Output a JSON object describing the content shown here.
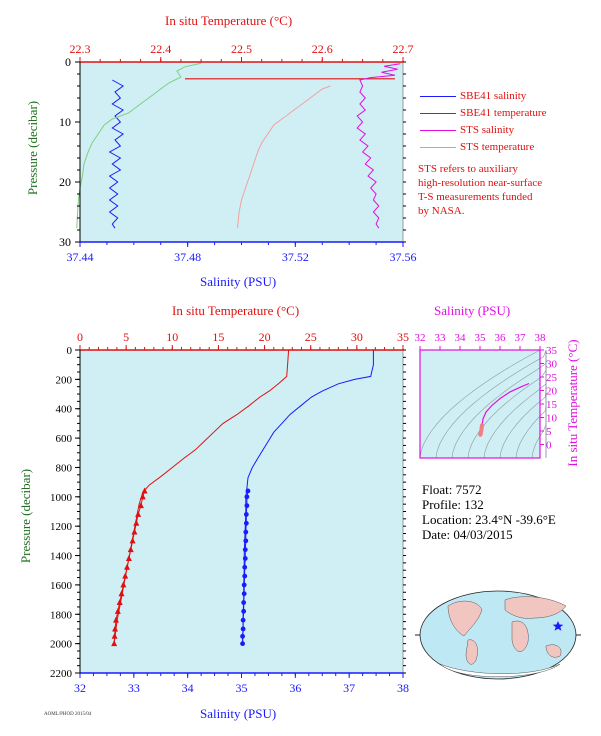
{
  "top_panel": {
    "top_axis_title": "In situ Temperature (°C)",
    "bottom_axis_title": "Salinity (PSU)",
    "left_axis_title": "Pressure (decibar)"
  },
  "legend": {
    "entries": [
      {
        "label": "SBE41 salinity",
        "color": "#1a1aff"
      },
      {
        "label": "SBE41 temperature",
        "color": "#e01010"
      },
      {
        "label": "STS salinity",
        "color": "#e010e0"
      },
      {
        "label": "STS temperature",
        "color": "#7fcf7f"
      }
    ],
    "note_lines": [
      "STS refers to auxiliary",
      "high-resolution near-surface",
      "T-S measurements funded",
      "by NASA."
    ]
  },
  "main_panel": {
    "top_axis_title": "In situ Temperature (°C)",
    "bottom_axis_title": "Salinity (PSU)",
    "left_axis_title": "Pressure (decibar)"
  },
  "ts_panel": {
    "top_axis_title": "Salinity (PSU)",
    "right_axis_title": "In situ Temperature (°C)"
  },
  "info": {
    "float": "Float:  7572",
    "profile": "Profile:  132",
    "location": "Location:  23.4°N  -39.6°E",
    "date": "Date:  04/03/2015"
  },
  "footer_code": "AOML/PHOD 2015/04",
  "colors": {
    "plot_bg": "#cfeff5",
    "temperature": "#e01010",
    "salinity": "#1a1aff",
    "sts_salinity": "#e010e0",
    "sts_temperature": "#7fcf7f",
    "sts_temperature_light": "#f4a0a0",
    "axis_blue": "#1a1aff",
    "axis_red": "#e01010",
    "axis_green": "#207020",
    "axis_magenta": "#e010e0",
    "text": "#000000"
  },
  "chart_data": [
    {
      "id": "near-surface",
      "type": "line",
      "ylabel": "Pressure (decibar)",
      "xlabel_bottom": "Salinity (PSU)",
      "xlabel_top": "In situ Temperature (°C)",
      "ylim": [
        30,
        0
      ],
      "x_bottom_lim": [
        37.44,
        37.56
      ],
      "x_top_lim": [
        22.3,
        22.7
      ],
      "y_ticks": [
        0,
        10,
        20,
        30
      ],
      "x_bottom_ticks": [
        "37.44",
        "37.48",
        "37.52",
        "37.56"
      ],
      "x_top_ticks": [
        "22.3",
        "22.4",
        "22.5",
        "22.6",
        "22.7"
      ],
      "series": [
        {
          "name": "SBE41 salinity",
          "axis": "bottom",
          "color": "#1a1aff",
          "points": [
            [
              37.452,
              3.0
            ],
            [
              37.456,
              4.0
            ],
            [
              37.453,
              5.0
            ],
            [
              37.455,
              6.0
            ],
            [
              37.452,
              7.0
            ],
            [
              37.456,
              8.0
            ],
            [
              37.453,
              9.0
            ],
            [
              37.455,
              10.0
            ],
            [
              37.452,
              11.0
            ],
            [
              37.456,
              12.0
            ],
            [
              37.453,
              13.0
            ],
            [
              37.455,
              14.0
            ],
            [
              37.451,
              15.0
            ],
            [
              37.455,
              16.0
            ],
            [
              37.452,
              17.0
            ],
            [
              37.455,
              18.0
            ],
            [
              37.451,
              19.0
            ],
            [
              37.454,
              20.0
            ],
            [
              37.451,
              21.0
            ],
            [
              37.454,
              22.0
            ],
            [
              37.451,
              23.0
            ],
            [
              37.454,
              24.0
            ],
            [
              37.451,
              25.0
            ],
            [
              37.454,
              26.0
            ],
            [
              37.452,
              27.0
            ],
            [
              37.453,
              27.7
            ]
          ]
        },
        {
          "name": "SBE41 temperature",
          "axis": "top",
          "color": "#e01010",
          "points": [
            [
              22.43,
              2.8
            ],
            [
              22.69,
              2.8
            ]
          ]
        },
        {
          "name": "STS salinity",
          "axis": "bottom",
          "color": "#e010e0",
          "points": [
            [
              37.559,
              0.3
            ],
            [
              37.553,
              0.7
            ],
            [
              37.558,
              1.2
            ],
            [
              37.552,
              1.7
            ],
            [
              37.557,
              2.2
            ],
            [
              37.548,
              2.6
            ],
            [
              37.544,
              3.0
            ],
            [
              37.545,
              4.0
            ],
            [
              37.544,
              5.0
            ],
            [
              37.546,
              6.0
            ],
            [
              37.544,
              7.0
            ],
            [
              37.546,
              8.0
            ],
            [
              37.543,
              9.0
            ],
            [
              37.545,
              10.0
            ],
            [
              37.543,
              11.0
            ],
            [
              37.546,
              12.0
            ],
            [
              37.544,
              13.0
            ],
            [
              37.547,
              14.0
            ],
            [
              37.545,
              15.0
            ],
            [
              37.548,
              16.0
            ],
            [
              37.546,
              17.0
            ],
            [
              37.549,
              18.0
            ],
            [
              37.547,
              19.0
            ],
            [
              37.55,
              20.0
            ],
            [
              37.548,
              21.0
            ],
            [
              37.55,
              22.0
            ],
            [
              37.549,
              23.0
            ],
            [
              37.551,
              24.0
            ],
            [
              37.549,
              25.0
            ],
            [
              37.551,
              26.0
            ],
            [
              37.55,
              27.0
            ],
            [
              37.551,
              27.7
            ]
          ]
        },
        {
          "name": "STS temperature",
          "axis": "top",
          "color": "#7fcf7f",
          "points": [
            [
              22.45,
              0.2
            ],
            [
              22.43,
              0.8
            ],
            [
              22.42,
              1.5
            ],
            [
              22.425,
              2.5
            ],
            [
              22.41,
              3.5
            ],
            [
              22.4,
              4.5
            ],
            [
              22.39,
              5.5
            ],
            [
              22.38,
              6.5
            ],
            [
              22.37,
              7.5
            ],
            [
              22.36,
              8.5
            ],
            [
              22.34,
              9.5
            ],
            [
              22.33,
              10.5
            ],
            [
              22.325,
              11.5
            ],
            [
              22.32,
              12.5
            ],
            [
              22.315,
              13.5
            ],
            [
              22.31,
              15.0
            ],
            [
              22.305,
              17.0
            ],
            [
              22.303,
              19.0
            ],
            [
              22.3,
              21.0
            ],
            [
              22.298,
              23.0
            ],
            [
              22.297,
              25.0
            ],
            [
              22.296,
              27.7
            ]
          ]
        },
        {
          "name": "",
          "axis": "top",
          "color": "#f4a0a0",
          "points": [
            [
              22.61,
              4.0
            ],
            [
              22.6,
              4.5
            ],
            [
              22.59,
              5.5
            ],
            [
              22.58,
              6.5
            ],
            [
              22.57,
              7.5
            ],
            [
              22.56,
              8.5
            ],
            [
              22.55,
              9.5
            ],
            [
              22.54,
              10.5
            ],
            [
              22.535,
              11.5
            ],
            [
              22.53,
              12.5
            ],
            [
              22.525,
              13.5
            ],
            [
              22.52,
              15.0
            ],
            [
              22.515,
              17.0
            ],
            [
              22.51,
              19.0
            ],
            [
              22.505,
              21.0
            ],
            [
              22.5,
              23.0
            ],
            [
              22.497,
              25.0
            ],
            [
              22.495,
              27.7
            ]
          ]
        }
      ]
    },
    {
      "id": "full-profile",
      "type": "line",
      "ylabel": "Pressure (decibar)",
      "xlabel_bottom": "Salinity (PSU)",
      "xlabel_top": "In situ Temperature (°C)",
      "ylim": [
        2200,
        0
      ],
      "x_bottom_lim": [
        32,
        38
      ],
      "x_top_lim": [
        0,
        35
      ],
      "y_ticks": [
        "0",
        "200",
        "400",
        "600",
        "800",
        "1000",
        "1200",
        "1400",
        "1600",
        "1800",
        "2000",
        "2200"
      ],
      "x_bottom_ticks": [
        "32",
        "33",
        "34",
        "35",
        "36",
        "37",
        "38"
      ],
      "x_top_ticks": [
        "0",
        "5",
        "10",
        "15",
        "20",
        "25",
        "30",
        "35"
      ],
      "series": [
        {
          "name": "Temperature",
          "axis": "top",
          "color": "#e01010",
          "points": [
            [
              22.6,
              0
            ],
            [
              22.5,
              100
            ],
            [
              22.4,
              180
            ],
            [
              21.5,
              230
            ],
            [
              20.5,
              280
            ],
            [
              19.5,
              320
            ],
            [
              18.3,
              380
            ],
            [
              17.0,
              440
            ],
            [
              15.5,
              500
            ],
            [
              14.5,
              560
            ],
            [
              13.5,
              620
            ],
            [
              12.5,
              680
            ],
            [
              11.2,
              740
            ],
            [
              10.0,
              800
            ],
            [
              8.8,
              860
            ],
            [
              7.5,
              920
            ],
            [
              6.8,
              970
            ],
            [
              6.4,
              1050
            ],
            [
              6.1,
              1150
            ],
            [
              5.8,
              1250
            ],
            [
              5.5,
              1350
            ],
            [
              5.2,
              1450
            ],
            [
              4.9,
              1550
            ],
            [
              4.6,
              1650
            ],
            [
              4.3,
              1750
            ],
            [
              4.0,
              1850
            ],
            [
              3.8,
              1950
            ],
            [
              3.7,
              2000
            ]
          ]
        },
        {
          "name": "Salinity",
          "axis": "bottom",
          "color": "#1a1aff",
          "points": [
            [
              37.45,
              0
            ],
            [
              37.45,
              100
            ],
            [
              37.4,
              180
            ],
            [
              37.1,
              200
            ],
            [
              36.8,
              230
            ],
            [
              36.5,
              280
            ],
            [
              36.3,
              320
            ],
            [
              36.1,
              380
            ],
            [
              35.9,
              440
            ],
            [
              35.75,
              500
            ],
            [
              35.6,
              560
            ],
            [
              35.5,
              620
            ],
            [
              35.4,
              680
            ],
            [
              35.3,
              740
            ],
            [
              35.2,
              800
            ],
            [
              35.12,
              870
            ],
            [
              35.1,
              940
            ],
            [
              35.08,
              1000
            ],
            [
              35.08,
              1100
            ],
            [
              35.07,
              1200
            ],
            [
              35.06,
              1300
            ],
            [
              35.05,
              1400
            ],
            [
              35.05,
              1500
            ],
            [
              35.04,
              1600
            ],
            [
              35.04,
              1700
            ],
            [
              35.03,
              1800
            ],
            [
              35.03,
              1900
            ],
            [
              35.02,
              2000
            ]
          ]
        },
        {
          "name": "",
          "axis": "top",
          "color": "#e01010",
          "marker": "triangle",
          "points": [
            [
              7.0,
              960
            ],
            [
              6.8,
              1000
            ],
            [
              6.6,
              1060
            ],
            [
              6.3,
              1120
            ],
            [
              6.1,
              1180
            ],
            [
              5.9,
              1240
            ],
            [
              5.7,
              1300
            ],
            [
              5.5,
              1360
            ],
            [
              5.3,
              1420
            ],
            [
              5.1,
              1480
            ],
            [
              4.9,
              1540
            ],
            [
              4.7,
              1600
            ],
            [
              4.5,
              1660
            ],
            [
              4.3,
              1720
            ],
            [
              4.1,
              1780
            ],
            [
              3.9,
              1840
            ],
            [
              3.8,
              1900
            ],
            [
              3.75,
              1950
            ],
            [
              3.7,
              2000
            ]
          ]
        },
        {
          "name": "",
          "axis": "bottom",
          "color": "#1a1aff",
          "marker": "dot",
          "points": [
            [
              35.12,
              960
            ],
            [
              35.1,
              1000
            ],
            [
              35.1,
              1060
            ],
            [
              35.09,
              1120
            ],
            [
              35.09,
              1180
            ],
            [
              35.08,
              1240
            ],
            [
              35.08,
              1300
            ],
            [
              35.07,
              1360
            ],
            [
              35.07,
              1420
            ],
            [
              35.06,
              1480
            ],
            [
              35.06,
              1540
            ],
            [
              35.05,
              1600
            ],
            [
              35.05,
              1660
            ],
            [
              35.04,
              1720
            ],
            [
              35.04,
              1780
            ],
            [
              35.03,
              1840
            ],
            [
              35.03,
              1900
            ],
            [
              35.02,
              1950
            ],
            [
              35.02,
              2000
            ]
          ]
        }
      ]
    },
    {
      "id": "ts-diagram",
      "type": "scatter",
      "xlabel_top": "Salinity (PSU)",
      "ylabel_right": "In situ Temperature (°C)",
      "xlim": [
        32,
        38
      ],
      "ylim": [
        -5,
        35
      ],
      "x_ticks": [
        "32",
        "33",
        "34",
        "35",
        "36",
        "37",
        "38"
      ],
      "y_ticks": [
        "0",
        "5",
        "10",
        "15",
        "20",
        "25",
        "30",
        "35"
      ],
      "series": [
        {
          "name": "",
          "color": "#e010e0",
          "points": [
            [
              37.45,
              22.6
            ],
            [
              37.1,
              21.5
            ],
            [
              36.5,
              19.5
            ],
            [
              36.0,
              17.0
            ],
            [
              35.6,
              14.5
            ],
            [
              35.3,
              12.0
            ],
            [
              35.15,
              9.5
            ],
            [
              35.1,
              7.0
            ],
            [
              35.08,
              6.0
            ],
            [
              35.06,
              5.0
            ],
            [
              35.04,
              4.2
            ],
            [
              35.02,
              3.7
            ]
          ]
        }
      ]
    }
  ]
}
